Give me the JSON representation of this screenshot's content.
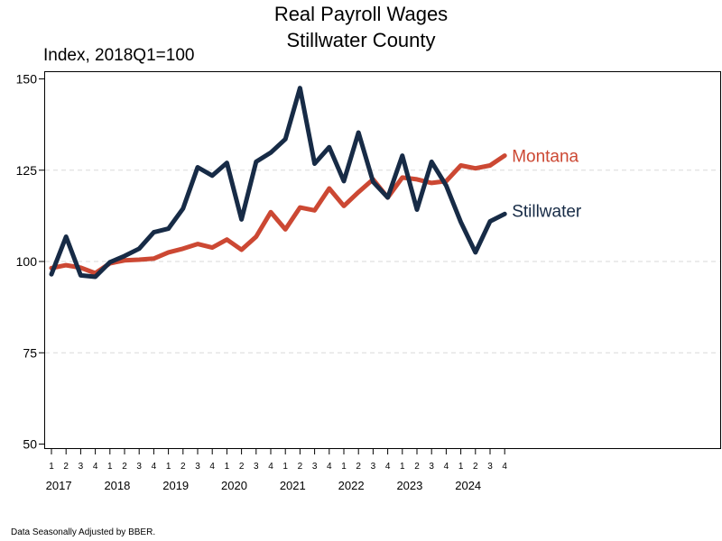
{
  "footnote": "Data Seasonally Adjusted by BBER.",
  "colors": {
    "stillwater": "#172b46",
    "montana": "#cc4833",
    "grid": "#d9d9d9",
    "axis": "#000000"
  },
  "chart_data": {
    "type": "line",
    "title": "Real Payroll Wages",
    "subtitle": "Stillwater County",
    "ylabel": "Index, 2018Q1=100",
    "xlabel": "",
    "ylim": [
      50,
      150
    ],
    "yticks": [
      50,
      75,
      100,
      125,
      150
    ],
    "grid": "horizontal dashed",
    "legend": "inline labels at line ends",
    "x_quarters": [
      "1",
      "2",
      "3",
      "4",
      "1",
      "2",
      "3",
      "4",
      "1",
      "2",
      "3",
      "4",
      "1",
      "2",
      "3",
      "4",
      "1",
      "2",
      "3",
      "4",
      "1",
      "2",
      "3",
      "4",
      "1",
      "2",
      "3",
      "4",
      "1",
      "2",
      "3",
      "4"
    ],
    "x_years": [
      "2017",
      "2018",
      "2019",
      "2020",
      "2021",
      "2022",
      "2023",
      "2024"
    ],
    "series": [
      {
        "name": "Montana",
        "color": "#cc4833",
        "values": [
          98.2,
          99.0,
          98.3,
          96.8,
          99.5,
          100.3,
          100.5,
          100.8,
          102.5,
          103.5,
          104.8,
          103.8,
          106.0,
          103.2,
          106.8,
          113.5,
          108.8,
          114.8,
          114.0,
          120.0,
          115.2,
          119.0,
          122.5,
          117.5,
          123.0,
          122.5,
          121.5,
          122.0,
          126.3,
          125.5,
          126.3,
          129.0
        ]
      },
      {
        "name": "Stillwater",
        "color": "#172b46",
        "values": [
          96.5,
          106.8,
          96.2,
          95.8,
          99.8,
          101.5,
          103.5,
          108.0,
          109.0,
          114.5,
          125.8,
          123.5,
          127.0,
          111.5,
          127.3,
          129.8,
          133.5,
          147.5,
          126.8,
          131.3,
          122.0,
          135.3,
          121.8,
          117.5,
          129.0,
          114.2,
          127.3,
          120.8,
          110.8,
          102.5,
          111.0,
          113.0
        ]
      }
    ]
  }
}
